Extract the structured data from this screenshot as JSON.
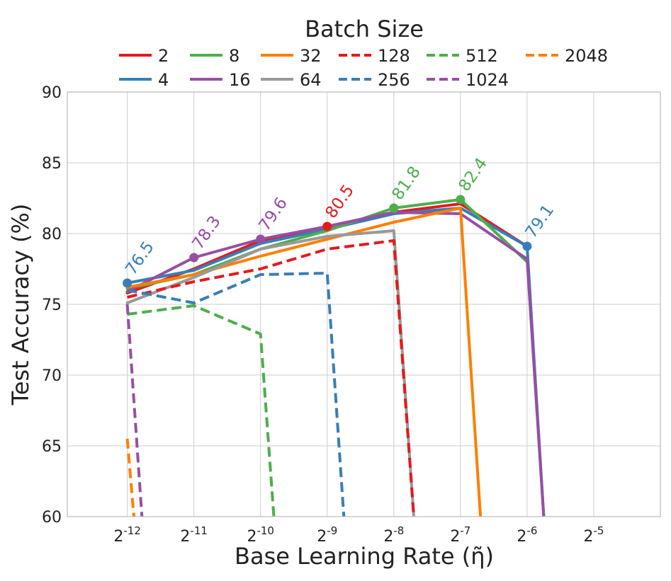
{
  "chart_data": {
    "type": "line",
    "xlabel": "Base Learning Rate (η̃)",
    "ylabel": "Test Accuracy (%)",
    "legend_title": "Batch Size",
    "legend_position": "top-center",
    "grid": true,
    "xlim": [
      -12.9,
      -4
    ],
    "ylim": [
      60,
      90
    ],
    "x_ticks": [
      {
        "exp": -12,
        "base": "2",
        "sup": "-12"
      },
      {
        "exp": -11,
        "base": "2",
        "sup": "-11"
      },
      {
        "exp": -10,
        "base": "2",
        "sup": "-10"
      },
      {
        "exp": -9,
        "base": "2",
        "sup": "-9"
      },
      {
        "exp": -8,
        "base": "2",
        "sup": "-8"
      },
      {
        "exp": -7,
        "base": "2",
        "sup": "-7"
      },
      {
        "exp": -6,
        "base": "2",
        "sup": "-6"
      },
      {
        "exp": -5,
        "base": "2",
        "sup": "-5"
      }
    ],
    "y_ticks": [
      60,
      65,
      70,
      75,
      80,
      85,
      90
    ],
    "series": [
      {
        "name": "2",
        "color": "#e41a1c",
        "dash": false,
        "x": [
          -12,
          -11,
          -10,
          -9,
          -8,
          -7,
          -6
        ],
        "y": [
          75.8,
          77.5,
          79.5,
          80.5,
          81.5,
          82.1,
          79.1
        ]
      },
      {
        "name": "4",
        "color": "#377eb8",
        "dash": false,
        "x": [
          -12,
          -11,
          -10,
          -9,
          -8,
          -7,
          -6,
          -5.75
        ],
        "y": [
          76.5,
          77.4,
          79.3,
          80.3,
          81.4,
          81.8,
          79.1,
          60
        ]
      },
      {
        "name": "8",
        "color": "#4daf4a",
        "dash": false,
        "x": [
          -12,
          -11,
          -10,
          -9,
          -8,
          -7,
          -6
        ],
        "y": [
          76.1,
          77.1,
          78.9,
          80.2,
          81.8,
          82.4,
          78.0
        ]
      },
      {
        "name": "16",
        "color": "#984ea3",
        "dash": false,
        "x": [
          -12,
          -11,
          -10,
          -9,
          -8,
          -7,
          -6,
          -5.75
        ],
        "y": [
          75.9,
          78.3,
          79.6,
          80.5,
          81.5,
          81.4,
          78.2,
          60
        ]
      },
      {
        "name": "32",
        "color": "#ff7f00",
        "dash": false,
        "x": [
          -12,
          -11,
          -10,
          -9,
          -8,
          -7,
          -6.7
        ],
        "y": [
          76.2,
          77.1,
          78.4,
          79.6,
          80.8,
          81.8,
          60
        ]
      },
      {
        "name": "64",
        "color": "#999999",
        "dash": false,
        "x": [
          -12,
          -11,
          -10,
          -9,
          -8,
          -7.7
        ],
        "y": [
          75.1,
          76.9,
          78.9,
          79.8,
          80.2,
          60
        ]
      },
      {
        "name": "128",
        "color": "#e41a1c",
        "dash": true,
        "x": [
          -12,
          -11,
          -10,
          -9,
          -8,
          -7.7
        ],
        "y": [
          75.5,
          76.6,
          77.5,
          78.9,
          79.5,
          60
        ]
      },
      {
        "name": "256",
        "color": "#377eb8",
        "dash": true,
        "x": [
          -12,
          -11,
          -10,
          -9,
          -8.75
        ],
        "y": [
          76.0,
          75.1,
          77.1,
          77.2,
          60
        ]
      },
      {
        "name": "512",
        "color": "#4daf4a",
        "dash": true,
        "x": [
          -12,
          -11,
          -10,
          -9.8
        ],
        "y": [
          74.3,
          74.9,
          72.9,
          60
        ]
      },
      {
        "name": "1024",
        "color": "#984ea3",
        "dash": true,
        "x": [
          -12,
          -11.78
        ],
        "y": [
          75.0,
          60
        ]
      },
      {
        "name": "2048",
        "color": "#ff7f00",
        "dash": true,
        "x": [
          -12,
          -11.9
        ],
        "y": [
          65.5,
          60
        ]
      }
    ],
    "highlights": [
      {
        "x": -12,
        "y": 76.5,
        "label": "76.5",
        "color": "#377eb8"
      },
      {
        "x": -11,
        "y": 78.3,
        "label": "78.3",
        "color": "#984ea3"
      },
      {
        "x": -10,
        "y": 79.6,
        "label": "79.6",
        "color": "#984ea3"
      },
      {
        "x": -9,
        "y": 80.5,
        "label": "80.5",
        "color": "#e41a1c"
      },
      {
        "x": -8,
        "y": 81.8,
        "label": "81.8",
        "color": "#4daf4a"
      },
      {
        "x": -7,
        "y": 82.4,
        "label": "82.4",
        "color": "#4daf4a"
      },
      {
        "x": -6,
        "y": 79.1,
        "label": "79.1",
        "color": "#377eb8"
      }
    ]
  }
}
